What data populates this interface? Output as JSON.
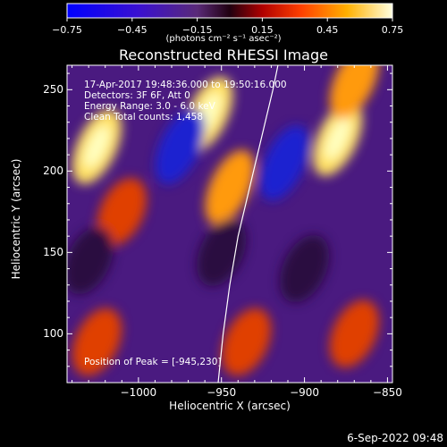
{
  "colorbar": {
    "ticks": [
      "-0.75",
      "-0.45",
      "-0.15",
      "0.15",
      "0.45",
      "0.75"
    ],
    "units": "(photons cm⁻² s⁻¹ asec⁻²)"
  },
  "chart_data": {
    "type": "heatmap",
    "title": "Reconstructed RHESSI Image",
    "xlabel": "Heliocentric X (arcsec)",
    "ylabel": "Heliocentric Y (arcsec)",
    "xlim": [
      -1043,
      -847
    ],
    "ylim": [
      70,
      265
    ],
    "xticks": [
      -1000,
      -950,
      -900,
      -850
    ],
    "xtick_labels": [
      "−1000",
      "−950",
      "−900",
      "−850"
    ],
    "yticks": [
      100,
      150,
      200,
      250
    ],
    "ytick_labels": [
      "100",
      "150",
      "200",
      "250"
    ],
    "colorbar_range": [
      -0.75,
      0.75
    ],
    "limb_curve": [
      [
        -952,
        70
      ],
      [
        -949,
        100
      ],
      [
        -945,
        130
      ],
      [
        -940,
        160
      ],
      [
        -933,
        190
      ],
      [
        -926,
        220
      ],
      [
        -919,
        250
      ],
      [
        -916,
        265
      ]
    ],
    "blobs": [
      {
        "x": -1025,
        "y": 215,
        "value": 0.7
      },
      {
        "x": -1010,
        "y": 175,
        "value": 0.5
      },
      {
        "x": -958,
        "y": 235,
        "value": 0.8
      },
      {
        "x": -945,
        "y": 190,
        "value": 0.55
      },
      {
        "x": -880,
        "y": 220,
        "value": 0.75
      },
      {
        "x": -870,
        "y": 255,
        "value": 0.6
      },
      {
        "x": -1025,
        "y": 95,
        "value": 0.45
      },
      {
        "x": -935,
        "y": 95,
        "value": 0.45
      },
      {
        "x": -870,
        "y": 100,
        "value": 0.4
      },
      {
        "x": -975,
        "y": 215,
        "value": -0.65
      },
      {
        "x": -912,
        "y": 205,
        "value": -0.75
      },
      {
        "x": -1030,
        "y": 145,
        "value": -0.25
      },
      {
        "x": -950,
        "y": 150,
        "value": -0.2
      },
      {
        "x": -900,
        "y": 140,
        "value": -0.2
      }
    ]
  },
  "annotations": {
    "time": "17-Apr-2017 19:48:36.000 to 19:50:16.000",
    "detectors": "Detectors: 3F 6F, Att 0",
    "energy": "Energy Range: 3.0 - 6.0 keV",
    "clean": "Clean    Total counts: 1,458",
    "peak": "Position of Peak = [-945,230]"
  },
  "footer_date": "6-Sep-2022 09:48"
}
